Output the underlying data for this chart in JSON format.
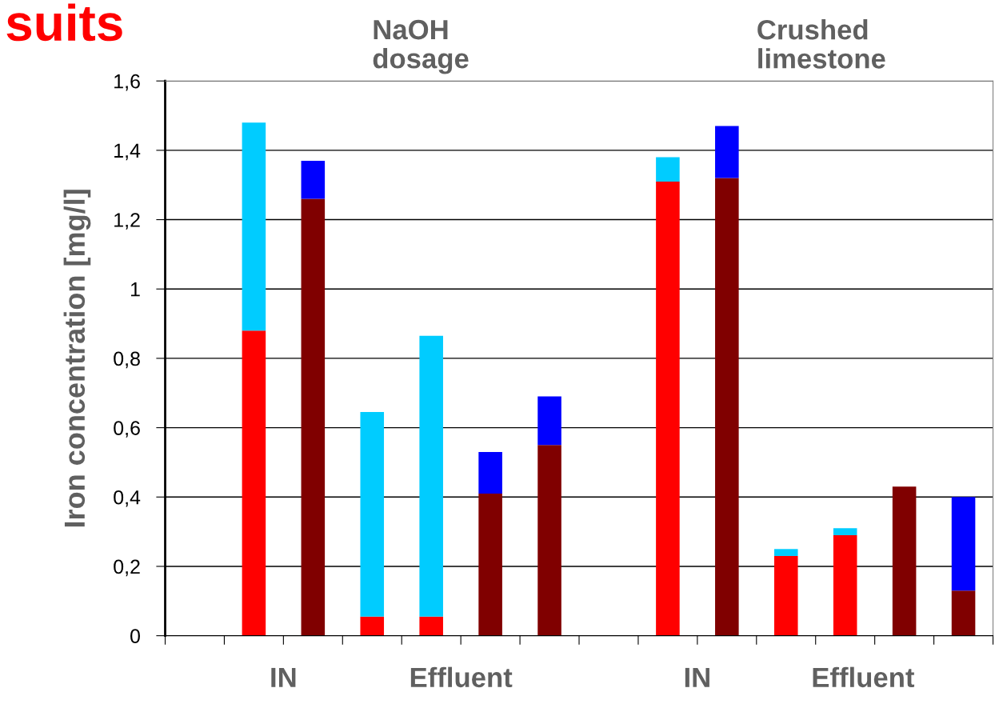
{
  "chart_data": {
    "type": "bar",
    "title": "suits",
    "ylabel": "Iron concentration [mg/l]",
    "annotations": [
      "NaOH\ndosage",
      "Crushed\nlimestone",
      "IN",
      "Effluent",
      "IN",
      "Effluent"
    ],
    "categories": [
      null,
      null,
      null,
      null,
      null,
      null,
      null,
      null,
      null,
      null,
      null,
      null,
      null,
      null
    ],
    "stacked": true,
    "series": [
      {
        "color": "#ff0000",
        "values": [
          null,
          0.88,
          null,
          0.055,
          0.055,
          null,
          null,
          null,
          1.31,
          null,
          0.23,
          0.29,
          null,
          null
        ]
      },
      {
        "color": "#800000",
        "values": [
          null,
          null,
          1.26,
          null,
          null,
          0.41,
          0.55,
          null,
          null,
          1.32,
          null,
          null,
          0.43,
          0.13
        ]
      },
      {
        "color": "#00ccff",
        "values": [
          null,
          0.6,
          null,
          0.59,
          0.81,
          null,
          null,
          null,
          0.07,
          null,
          0.02,
          0.02,
          null,
          null
        ]
      },
      {
        "color": "#0000ff",
        "values": [
          null,
          null,
          0.11,
          null,
          null,
          0.12,
          0.14,
          null,
          null,
          0.15,
          null,
          null,
          null,
          0.27
        ]
      }
    ],
    "ylim": [
      0,
      1.6
    ],
    "yticks": [
      0,
      {
        "value": 0.2,
        "label": "0,2"
      },
      {
        "value": 0.4,
        "label": "0,4"
      },
      {
        "value": 0.6,
        "label": "0,6"
      },
      {
        "value": 0.8,
        "label": "0,8"
      },
      1,
      {
        "value": 1.2,
        "label": "1,2"
      },
      {
        "value": 1.4,
        "label": "1,4"
      },
      {
        "value": 1.6,
        "label": "1,6"
      }
    ],
    "grid": "y",
    "legend": false
  }
}
